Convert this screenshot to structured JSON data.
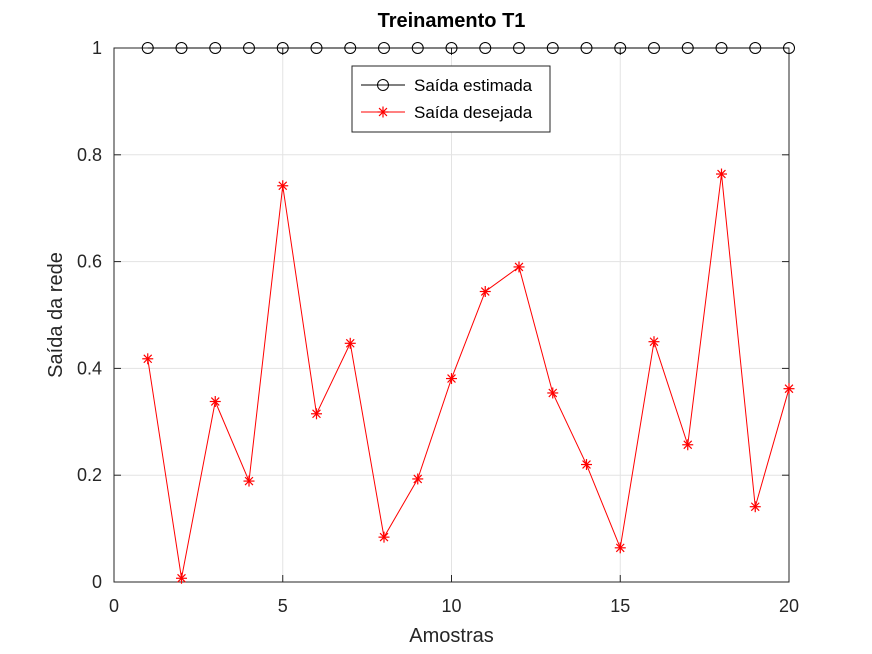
{
  "chart_data": {
    "type": "line",
    "title": "Treinamento T1",
    "xlabel": "Amostras",
    "ylabel": "Saída da rede",
    "xlim": [
      0,
      20
    ],
    "ylim": [
      0,
      1
    ],
    "xticks": [
      0,
      5,
      10,
      15,
      20
    ],
    "xtick_labels": [
      "0",
      "5",
      "10",
      "15",
      "20"
    ],
    "yticks": [
      0,
      0.2,
      0.4,
      0.6,
      0.8,
      1
    ],
    "ytick_labels": [
      "0",
      "0.2",
      "0.4",
      "0.6",
      "0.8",
      "1"
    ],
    "grid": true,
    "legend_position": "top-center",
    "x": [
      1,
      2,
      3,
      4,
      5,
      6,
      7,
      8,
      9,
      10,
      11,
      12,
      13,
      14,
      15,
      16,
      17,
      18,
      19,
      20
    ],
    "series": [
      {
        "name": "Saída estimada",
        "color": "#000000",
        "marker": "circle",
        "values": [
          1,
          1,
          1,
          1,
          1,
          1,
          1,
          1,
          1,
          1,
          1,
          1,
          1,
          1,
          1,
          1,
          1,
          1,
          1,
          1
        ]
      },
      {
        "name": "Saída desejada",
        "color": "#ff0000",
        "marker": "asterisk",
        "values": [
          0.418,
          0.007,
          0.338,
          0.189,
          0.742,
          0.315,
          0.447,
          0.084,
          0.193,
          0.381,
          0.544,
          0.59,
          0.354,
          0.22,
          0.064,
          0.45,
          0.257,
          0.764,
          0.141,
          0.362
        ]
      }
    ]
  }
}
